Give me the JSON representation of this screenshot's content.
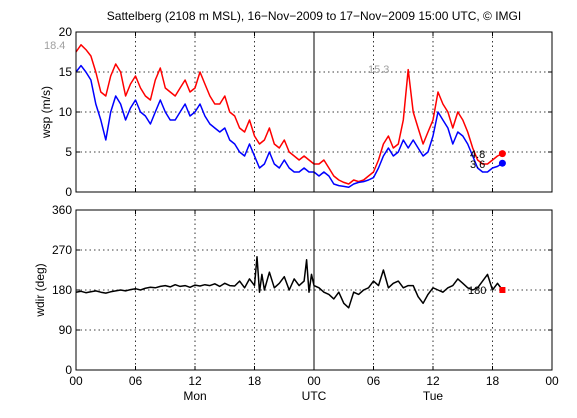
{
  "chart_data": [
    {
      "type": "line",
      "title": "Sattelberg (2108 m MSL), 16−Nov−2009 to 17−Nov−2009 15:00 UTC, © IMGI",
      "ylabel": "wsp (m/s)",
      "xlim": [
        0,
        48
      ],
      "ylim": [
        0,
        20
      ],
      "yticks": [
        "0",
        "5",
        "10",
        "15",
        "20"
      ],
      "xticks": [
        "00",
        "06",
        "12",
        "18",
        "00",
        "06",
        "12",
        "18",
        "00"
      ],
      "grid": true,
      "annotations": [
        "18.4",
        "15.3",
        "4.8",
        "3.6"
      ],
      "series": [
        {
          "color": "#ff0000",
          "x": [
            0,
            0.5,
            1,
            1.5,
            2,
            2.5,
            3,
            3.5,
            4,
            4.5,
            5,
            5.5,
            6,
            6.5,
            7,
            7.5,
            8,
            8.5,
            9,
            9.5,
            10,
            10.5,
            11,
            11.5,
            12,
            12.5,
            13,
            13.5,
            14,
            14.5,
            15,
            15.5,
            16,
            16.5,
            17,
            17.5,
            18,
            18.5,
            19,
            19.5,
            20,
            20.5,
            21,
            21.5,
            22,
            22.5,
            23,
            23.5,
            24,
            24.5,
            25,
            25.5,
            26,
            26.5,
            27,
            27.5,
            28,
            28.5,
            29,
            29.5,
            30,
            30.5,
            31,
            31.5,
            32,
            32.5,
            33,
            33.5,
            34,
            34.5,
            35,
            35.5,
            36,
            36.5,
            37,
            37.5,
            38,
            38.5,
            39,
            39.5,
            40,
            40.5,
            41,
            41.5,
            42,
            42.5,
            43
          ],
          "values": [
            17.5,
            18.4,
            17.8,
            17,
            15,
            12.5,
            12,
            14.5,
            16,
            15,
            12,
            13.5,
            14.5,
            13,
            12,
            11.5,
            14,
            15.5,
            13,
            12.5,
            12,
            13,
            14,
            12.5,
            13,
            15,
            13.5,
            12,
            11,
            11,
            12,
            10,
            9.5,
            8,
            7.5,
            9,
            7,
            6,
            6.5,
            8,
            6,
            5.5,
            6.5,
            5,
            4.5,
            4,
            4.5,
            4,
            3.5,
            3.5,
            4,
            3,
            2,
            1.5,
            1.2,
            1,
            1.5,
            1.3,
            1.5,
            2,
            2.5,
            4,
            6,
            7,
            5.5,
            6,
            9,
            15.3,
            10,
            8,
            6,
            7.5,
            9,
            12.5,
            11,
            10,
            8,
            10,
            9,
            7.5,
            5.5,
            4,
            3.5,
            3.5,
            4,
            4.5,
            4.8
          ]
        },
        {
          "color": "#0000ff",
          "x": [
            0,
            0.5,
            1,
            1.5,
            2,
            2.5,
            3,
            3.5,
            4,
            4.5,
            5,
            5.5,
            6,
            6.5,
            7,
            7.5,
            8,
            8.5,
            9,
            9.5,
            10,
            10.5,
            11,
            11.5,
            12,
            12.5,
            13,
            13.5,
            14,
            14.5,
            15,
            15.5,
            16,
            16.5,
            17,
            17.5,
            18,
            18.5,
            19,
            19.5,
            20,
            20.5,
            21,
            21.5,
            22,
            22.5,
            23,
            23.5,
            24,
            24.5,
            25,
            25.5,
            26,
            26.5,
            27,
            27.5,
            28,
            28.5,
            29,
            29.5,
            30,
            30.5,
            31,
            31.5,
            32,
            32.5,
            33,
            33.5,
            34,
            34.5,
            35,
            35.5,
            36,
            36.5,
            37,
            37.5,
            38,
            38.5,
            39,
            39.5,
            40,
            40.5,
            41,
            41.5,
            42,
            42.5,
            43
          ],
          "values": [
            15,
            15.8,
            15,
            14,
            11,
            9,
            6.5,
            10,
            12,
            11,
            9,
            10.5,
            11.5,
            10,
            9.5,
            8.5,
            10,
            11.5,
            10,
            9,
            9,
            10,
            11,
            9.5,
            10,
            11,
            9.5,
            8.5,
            8,
            7.5,
            8,
            6.5,
            6,
            5,
            4.5,
            6,
            4.5,
            3,
            3.5,
            5,
            3.5,
            3,
            4,
            3,
            2.5,
            2.5,
            3,
            2.5,
            2.5,
            2,
            2.5,
            2,
            1,
            0.8,
            0.7,
            0.6,
            1,
            1.2,
            1.3,
            1.5,
            1.8,
            3,
            4.5,
            5.5,
            4.5,
            5,
            6.5,
            5.5,
            6.5,
            5.5,
            4.5,
            5,
            7,
            10,
            9,
            8,
            6,
            7.5,
            7,
            6,
            4.5,
            3,
            2.5,
            2.5,
            3,
            3.2,
            3.6
          ]
        }
      ]
    },
    {
      "type": "line",
      "ylabel": "wdir (deg)",
      "xlabel_days": [
        "Mon",
        "UTC",
        "Tue"
      ],
      "xlim": [
        0,
        48
      ],
      "ylim": [
        0,
        360
      ],
      "yticks": [
        "0",
        "90",
        "180",
        "270",
        "360"
      ],
      "xticks": [
        "00",
        "06",
        "12",
        "18",
        "00",
        "06",
        "12",
        "18",
        "00"
      ],
      "grid": true,
      "annotations": [
        "180"
      ],
      "series": [
        {
          "color": "#000000",
          "x": [
            0,
            0.5,
            1,
            1.5,
            2,
            2.5,
            3,
            3.5,
            4,
            4.5,
            5,
            5.5,
            6,
            6.5,
            7,
            7.5,
            8,
            8.5,
            9,
            9.5,
            10,
            10.5,
            11,
            11.5,
            12,
            12.5,
            13,
            13.5,
            14,
            14.5,
            15,
            15.5,
            16,
            16.5,
            17,
            17.5,
            18,
            18.25,
            18.5,
            18.75,
            19,
            19.5,
            20,
            20.5,
            21,
            21.5,
            22,
            22.5,
            23,
            23.25,
            23.5,
            23.75,
            24,
            24.5,
            25,
            25.5,
            26,
            26.5,
            27,
            27.5,
            28,
            28.5,
            29,
            29.5,
            30,
            30.5,
            31,
            31.5,
            32,
            32.5,
            33,
            33.5,
            34,
            34.5,
            35,
            35.5,
            36,
            36.5,
            37,
            37.5,
            38,
            38.5,
            39,
            39.5,
            40,
            40.5,
            41,
            41.5,
            42,
            42.5,
            43
          ],
          "values": [
            175,
            177,
            174,
            176,
            178,
            175,
            173,
            176,
            178,
            180,
            178,
            181,
            183,
            180,
            184,
            186,
            185,
            188,
            190,
            187,
            192,
            188,
            190,
            186,
            191,
            189,
            192,
            190,
            194,
            188,
            195,
            190,
            189,
            200,
            185,
            205,
            190,
            255,
            175,
            215,
            180,
            220,
            185,
            195,
            210,
            180,
            205,
            190,
            200,
            248,
            175,
            215,
            190,
            185,
            175,
            170,
            160,
            175,
            150,
            140,
            175,
            170,
            180,
            185,
            200,
            190,
            225,
            185,
            195,
            200,
            185,
            190,
            190,
            165,
            150,
            170,
            185,
            180,
            175,
            185,
            190,
            205,
            195,
            185,
            180,
            185,
            200,
            215,
            180,
            195,
            180
          ]
        }
      ]
    }
  ]
}
